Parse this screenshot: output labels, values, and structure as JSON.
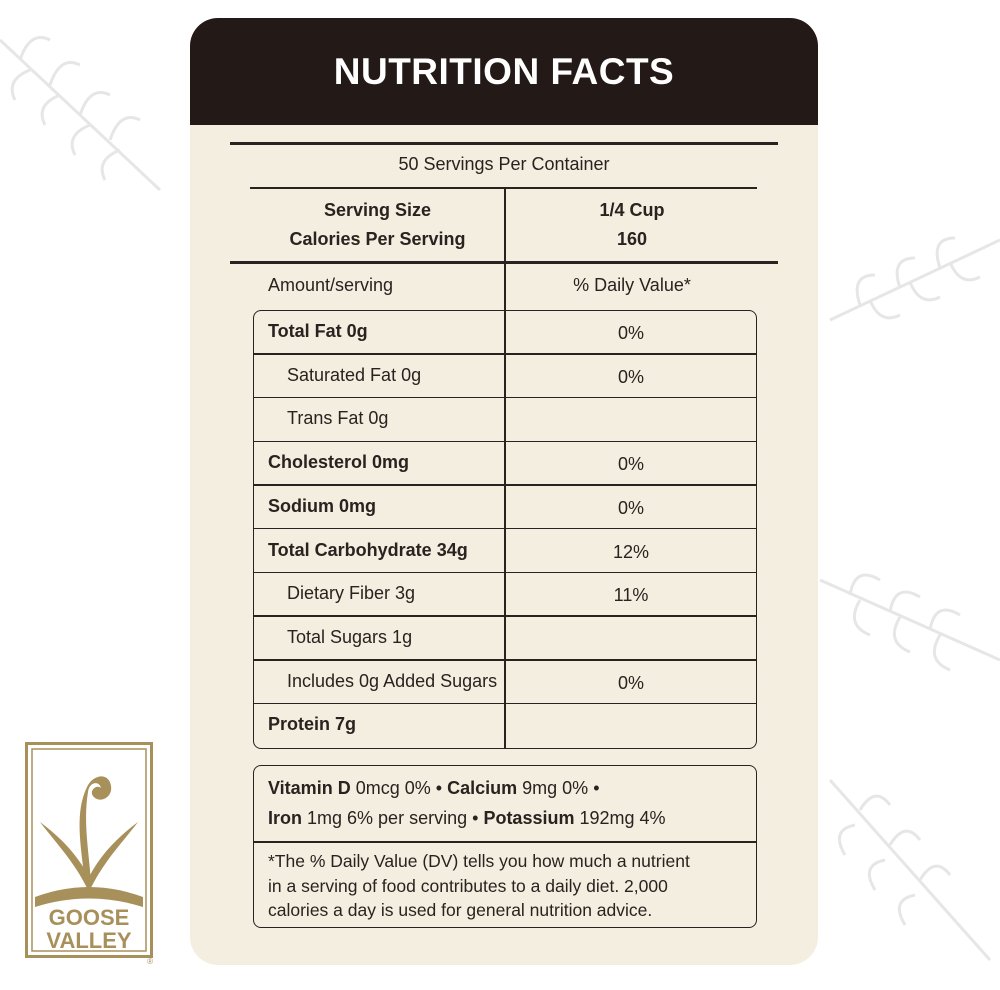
{
  "header": {
    "title": "NUTRITION FACTS"
  },
  "servings": "50 Servings Per Container",
  "serving_size": {
    "label": "Serving Size",
    "value": "1/4 Cup"
  },
  "calories": {
    "label": "Calories Per Serving",
    "value": "160"
  },
  "columns": {
    "amount": "Amount/serving",
    "daily_value": "% Daily Value*"
  },
  "rows": [
    {
      "name": "Total Fat 0g",
      "dv": "0%"
    },
    {
      "name": "Saturated Fat 0g",
      "dv": "0%"
    },
    {
      "name": "Trans Fat 0g"
    },
    {
      "name": "Cholesterol 0mg",
      "dv": "0%"
    },
    {
      "name": "Sodium 0mg",
      "dv": "0%"
    },
    {
      "name": "Total Carbohydrate 34g",
      "dv": "12%"
    },
    {
      "name": "Dietary Fiber 3g",
      "dv": "11%"
    },
    {
      "name": "Total Sugars 1g"
    },
    {
      "name": "Includes 0g Added Sugars",
      "dv": "0%"
    },
    {
      "name": "Protein 7g"
    }
  ],
  "minerals": {
    "separator": "•",
    "items": [
      {
        "name": "Vitamin D",
        "amount": "0mcg 0%"
      },
      {
        "name": "Calcium",
        "amount": "9mg 0%"
      },
      {
        "name": "Iron",
        "amount": "1mg 6% per serving"
      },
      {
        "name": "Potassium",
        "amount": "192mg 4%"
      }
    ]
  },
  "footnote": [
    "*The % Daily Value (DV) tells you how much a nutrient",
    "in a serving of food contributes to a daily diet. 2,000",
    "calories a day is used for general nutrition advice."
  ],
  "logo": {
    "line1": "GOOSE",
    "line2": "VALLEY",
    "mark": "®"
  }
}
